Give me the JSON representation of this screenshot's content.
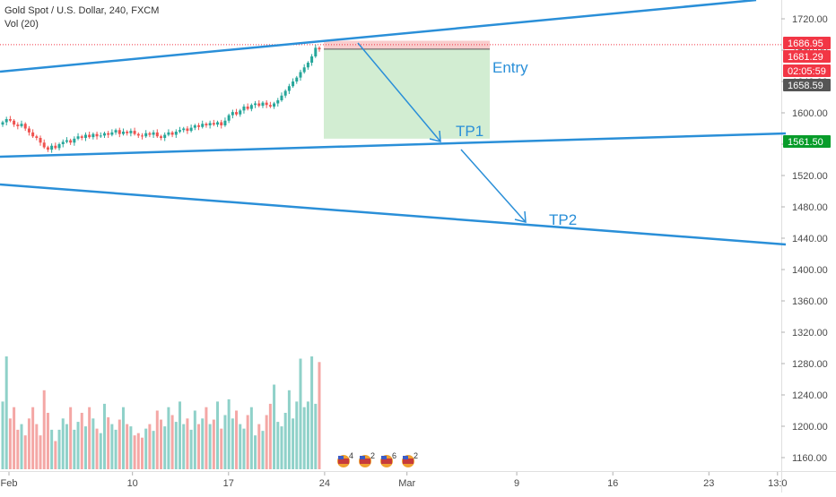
{
  "header": {
    "title": "Gold Spot / U.S. Dollar, 240, FXCM",
    "volume_label": "Vol (20)"
  },
  "colors": {
    "trendline": "#2a8fd8",
    "up_candle": "#26a69a",
    "down_candle": "#ef5350",
    "stop_zone": "#f8c4c4",
    "target_zone": "#cdebcd",
    "price_badge_red": "#f23645",
    "price_badge_dark": "#555555",
    "price_badge_green": "#089c2a"
  },
  "chart_data": {
    "type": "candlestick",
    "symbol": "Gold Spot / U.S. Dollar",
    "timeframe": "240",
    "source": "FXCM",
    "y_axis_ticks": [
      1720,
      1680,
      1640,
      1600,
      1560,
      1520,
      1480,
      1440,
      1400,
      1360,
      1320,
      1280,
      1240,
      1200,
      1160
    ],
    "y_tick_labels": [
      "1720.00",
      "1680.00",
      "1640.00",
      "1600.00",
      "1560.00",
      "1520.00",
      "1480.00",
      "1440.00",
      "1400.00",
      "1360.00",
      "1320.00",
      "1280.00",
      "1240.00",
      "1200.00",
      "1160.00"
    ],
    "ylim": [
      1150,
      1740
    ],
    "x_ticks": [
      {
        "label": "Feb",
        "day": 0
      },
      {
        "label": "10",
        "day": 9
      },
      {
        "label": "17",
        "day": 16
      },
      {
        "label": "24",
        "day": 23
      },
      {
        "label": "Mar",
        "day": 29
      },
      {
        "label": "9",
        "day": 37
      },
      {
        "label": "16",
        "day": 44
      },
      {
        "label": "23",
        "day": 51
      },
      {
        "label": "13:0",
        "day": 56
      }
    ],
    "xlim": [
      0,
      57
    ],
    "closes": [
      1588,
      1592,
      1590,
      1585,
      1583,
      1586,
      1580,
      1575,
      1570,
      1568,
      1562,
      1556,
      1553,
      1558,
      1555,
      1560,
      1563,
      1565,
      1562,
      1567,
      1570,
      1568,
      1572,
      1569,
      1573,
      1570,
      1571,
      1574,
      1572,
      1575,
      1578,
      1573,
      1576,
      1574,
      1577,
      1573,
      1571,
      1570,
      1574,
      1572,
      1575,
      1570,
      1568,
      1572,
      1575,
      1572,
      1576,
      1578,
      1580,
      1577,
      1581,
      1584,
      1582,
      1586,
      1584,
      1587,
      1585,
      1588,
      1584,
      1590,
      1597,
      1601,
      1598,
      1603,
      1608,
      1605,
      1610,
      1612,
      1609,
      1613,
      1610,
      1608,
      1612,
      1616,
      1622,
      1628,
      1634,
      1640,
      1645,
      1652,
      1658,
      1664,
      1672,
      1683,
      1681
    ],
    "volumes": [
      60,
      100,
      45,
      55,
      35,
      40,
      30,
      45,
      55,
      40,
      30,
      70,
      50,
      35,
      25,
      35,
      45,
      40,
      55,
      35,
      42,
      50,
      38,
      55,
      45,
      36,
      32,
      58,
      46,
      40,
      35,
      44,
      55,
      40,
      38,
      30,
      32,
      28,
      36,
      40,
      34,
      52,
      44,
      38,
      55,
      48,
      42,
      60,
      40,
      45,
      35,
      52,
      40,
      45,
      55,
      40,
      44,
      60,
      36,
      48,
      62,
      45,
      52,
      40,
      36,
      48,
      55,
      30,
      40,
      34,
      48,
      58,
      75,
      42,
      38,
      50,
      70,
      45,
      60,
      98,
      55,
      60,
      100,
      58,
      95
    ],
    "last_price": "1686.95",
    "entry_price": "1681.29",
    "countdown": "02:05:59",
    "stop_price_label": "1658.59",
    "tp1_price": "1561.50",
    "annotations": {
      "entry": "Entry",
      "tp1": "TP1",
      "tp2": "TP2"
    },
    "events": [
      {
        "count": "4"
      },
      {
        "count": "2"
      },
      {
        "count": "6"
      },
      {
        "count": "2"
      }
    ]
  }
}
